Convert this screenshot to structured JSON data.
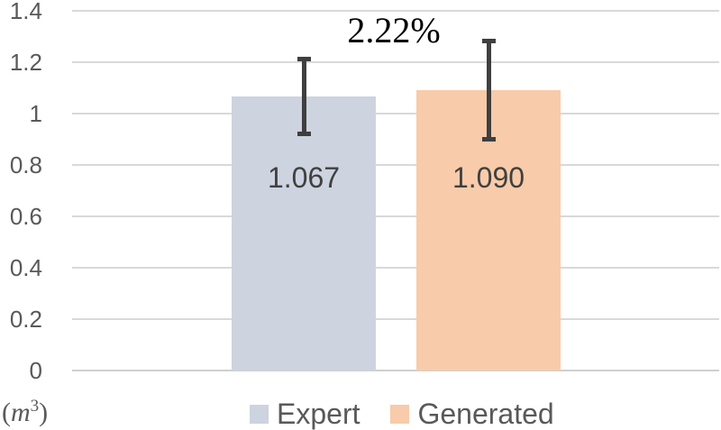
{
  "chart_data": {
    "type": "bar",
    "categories": [
      "Expert",
      "Generated"
    ],
    "values": [
      1.067,
      1.09
    ],
    "value_labels": [
      "1.067",
      "1.090"
    ],
    "errors": [
      0.153,
      0.2
    ],
    "annotation": "2.22%",
    "unit_label": {
      "open": "(",
      "symbol": "m",
      "exponent": "3",
      "close": ")"
    },
    "ylim": [
      0,
      1.4
    ],
    "yticks": [
      {
        "value": 0,
        "label": "0"
      },
      {
        "value": 0.2,
        "label": "0.2"
      },
      {
        "value": 0.4,
        "label": "0.4"
      },
      {
        "value": 0.6,
        "label": "0.6"
      },
      {
        "value": 0.8,
        "label": "0.8"
      },
      {
        "value": 1,
        "label": "1"
      },
      {
        "value": 1.2,
        "label": "1.2"
      },
      {
        "value": 1.4,
        "label": "1.4"
      }
    ],
    "grid": true,
    "legend_position": "bottom",
    "legend": [
      {
        "label": "Expert",
        "color": "#cdd3df"
      },
      {
        "label": "Generated",
        "color": "#f8cbaa"
      }
    ],
    "colors": {
      "gridline": "#d9d9d9",
      "tick_text": "#595959",
      "value_text": "#404040",
      "error_bar": "#3f3f3f",
      "annotation_text": "#000000"
    }
  }
}
